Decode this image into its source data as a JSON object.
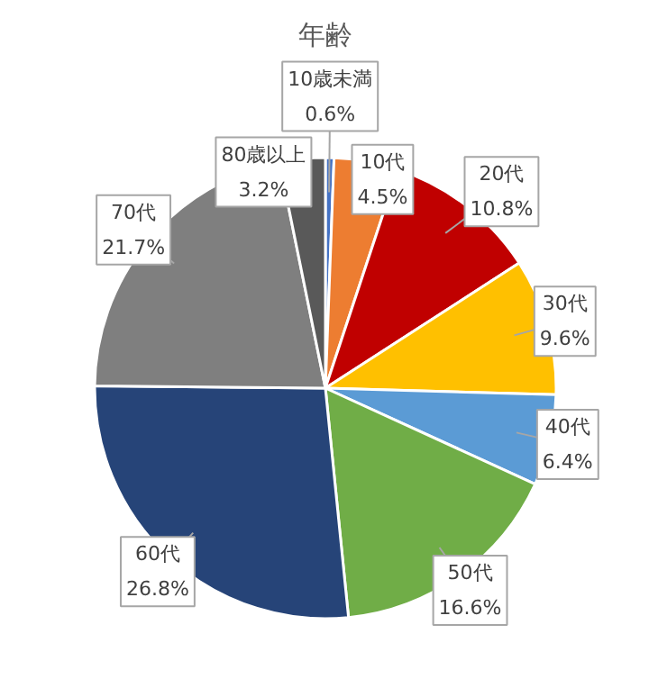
{
  "chart_data": {
    "type": "pie",
    "title": "年齢",
    "categories": [
      "10歳未満",
      "10代",
      "20代",
      "30代",
      "40代",
      "50代",
      "60代",
      "70代",
      "80歳以上"
    ],
    "values": [
      0.6,
      4.5,
      10.8,
      9.6,
      6.4,
      16.6,
      26.8,
      21.7,
      3.2
    ],
    "value_labels": [
      "0.6%",
      "4.5%",
      "10.8%",
      "9.6%",
      "6.4%",
      "16.6%",
      "26.8%",
      "21.7%",
      "3.2%"
    ],
    "colors": [
      "#4472c4",
      "#ed7d31",
      "#c00000",
      "#ffc000",
      "#5b9bd5",
      "#70ad47",
      "#264478",
      "#7f7f7f",
      "#595959"
    ]
  }
}
